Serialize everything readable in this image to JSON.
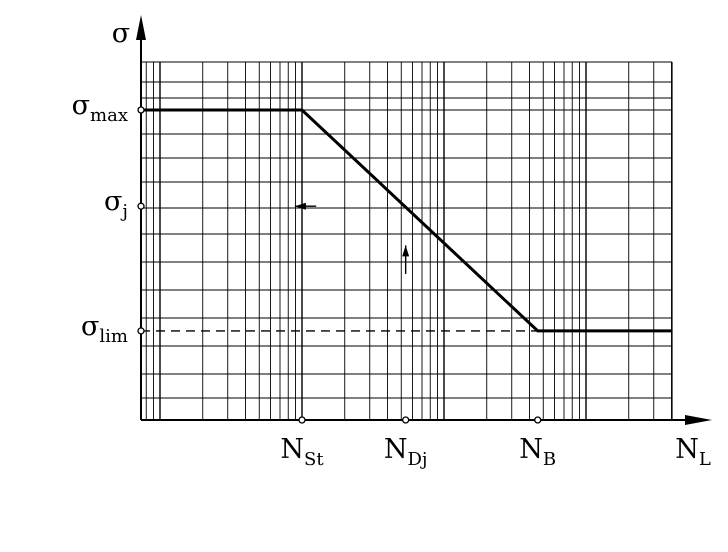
{
  "chart_data": {
    "type": "line",
    "title": "",
    "ylabel": "σ",
    "xlabel": "N_L",
    "xscale": "log",
    "grid": true,
    "y_ticks": [
      {
        "symbol": "σ",
        "sub": "max",
        "level": 0.87
      },
      {
        "symbol": "σ",
        "sub": "j",
        "level": 0.6
      },
      {
        "symbol": "σ",
        "sub": "lim",
        "level": 0.25
      }
    ],
    "x_ticks": [
      {
        "symbol": "N",
        "sub": "St",
        "decade": 1.0
      },
      {
        "symbol": "N",
        "sub": "Dj",
        "decade": 1.73
      },
      {
        "symbol": "N",
        "sub": "B",
        "decade": 2.66
      }
    ],
    "x_axis_label": {
      "symbol": "N",
      "sub": "L"
    },
    "y_axis_label": {
      "symbol": "σ"
    },
    "series": [
      {
        "style": "solid",
        "points": [
          {
            "decade": -1.09,
            "level": 0.87
          },
          {
            "decade": 1.0,
            "level": 0.87
          },
          {
            "decade": 2.66,
            "level": 0.25
          },
          {
            "decade": 4.55,
            "level": 0.25
          }
        ]
      },
      {
        "style": "dashed",
        "points": [
          {
            "decade": -1.09,
            "level": 0.25
          },
          {
            "decade": 2.66,
            "level": 0.25
          }
        ]
      }
    ],
    "arrows": [
      {
        "from": {
          "decade": 1.1,
          "level": 0.6
        },
        "to": {
          "decade": 0.95,
          "level": 0.6
        }
      },
      {
        "from": {
          "decade": 1.73,
          "level": 0.41
        },
        "to": {
          "decade": 1.73,
          "level": 0.49
        }
      }
    ]
  }
}
